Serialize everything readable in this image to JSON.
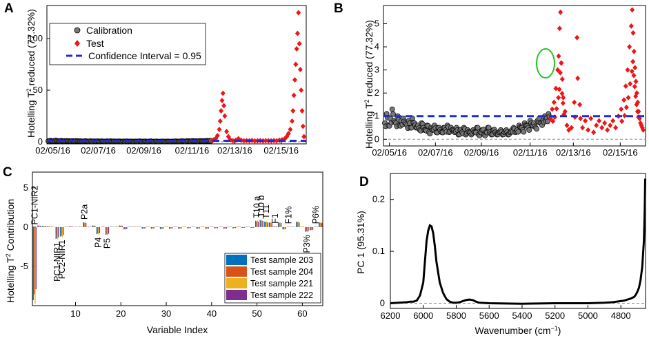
{
  "chart_data": [
    {
      "panel": "A",
      "type": "scatter",
      "xlabel": "",
      "ylabel": "Hotelling T² reduced (77.32%)",
      "ylabel_parts": [
        "Hotelling T",
        "2",
        " reduced (77.32%)"
      ],
      "ylim": [
        0,
        130
      ],
      "yticks": [
        "0",
        "50",
        "100"
      ],
      "xticks": [
        "02/05/16",
        "02/07/16",
        "02/09/16",
        "02/11/16",
        "02/13/16",
        "02/15/16"
      ],
      "legend": [
        "Calibration",
        "Test",
        "Confidence Interval = 0.95"
      ],
      "confidence_limit": 1,
      "series": [
        {
          "name": "Calibration",
          "x": [
            0,
            2,
            4,
            6,
            8,
            10,
            12,
            14,
            16,
            18,
            20,
            22,
            24,
            26,
            28,
            30,
            32,
            34,
            36,
            38,
            40,
            42,
            44,
            46,
            48,
            50,
            52,
            54,
            56,
            58,
            60,
            62,
            64,
            66,
            68,
            70,
            72,
            74,
            76,
            78,
            80,
            82,
            84,
            86,
            88,
            90,
            92,
            94,
            96,
            98,
            100,
            102,
            104,
            106,
            108,
            110,
            112,
            114,
            116,
            118,
            120,
            122,
            124,
            126,
            128,
            130,
            132,
            134,
            136,
            138,
            140,
            142,
            144,
            146,
            148,
            150,
            152,
            154,
            156,
            158,
            160,
            162,
            164,
            166,
            168,
            170,
            172,
            174,
            176,
            178
          ],
          "y": [
            0.7,
            1.1,
            0.6,
            0.9,
            1.3,
            0.8,
            0.7,
            1.0,
            0.6,
            0.8,
            0.9,
            0.7,
            0.6,
            0.8,
            0.5,
            0.9,
            0.7,
            0.5,
            0.6,
            0.4,
            0.7,
            0.5,
            0.4,
            0.6,
            0.3,
            0.5,
            0.4,
            0.6,
            0.3,
            0.5,
            0.4,
            0.3,
            0.5,
            0.4,
            0.6,
            0.3,
            0.5,
            0.4,
            0.3,
            0.5,
            0.2,
            0.4,
            0.3,
            0.5,
            0.2,
            0.4,
            0.3,
            0.2,
            0.4,
            0.3,
            0.5,
            0.2,
            0.3,
            0.4,
            0.2,
            0.3,
            0.5,
            0.3,
            0.2,
            0.4,
            0.3,
            0.2,
            0.3,
            0.4,
            0.2,
            0.3,
            0.4,
            0.2,
            0.3,
            0.4,
            0.5,
            0.3,
            0.4,
            0.6,
            0.5,
            0.4,
            0.7,
            0.6,
            0.5,
            0.8,
            0.6,
            0.7,
            0.5,
            0.8,
            0.9,
            0.7,
            0.8,
            1.0,
            0.9,
            1.1
          ]
        },
        {
          "name": "Test",
          "x": [
            180,
            182,
            184,
            186,
            188,
            189,
            190,
            191,
            192,
            193,
            194,
            196,
            198,
            200,
            203,
            206,
            209,
            212,
            215,
            218,
            221,
            224,
            227,
            230,
            233,
            236,
            239,
            242,
            245,
            248,
            251,
            254,
            257,
            260,
            262,
            264,
            266,
            268,
            269,
            270,
            271,
            272,
            273,
            274,
            275,
            276,
            277,
            278,
            279,
            280,
            281
          ],
          "y": [
            1,
            2,
            3,
            6,
            12,
            20,
            30,
            40,
            47,
            35,
            25,
            10,
            5,
            2,
            1,
            1.5,
            3,
            1.5,
            1,
            1.2,
            1,
            1.3,
            0.8,
            1,
            1.2,
            0.9,
            1.1,
            1,
            0.9,
            1.2,
            1,
            1.5,
            2,
            3,
            5,
            8,
            12,
            20,
            30,
            45,
            60,
            75,
            90,
            105,
            125,
            95,
            70,
            50,
            30,
            15,
            5
          ]
        }
      ]
    },
    {
      "panel": "B",
      "type": "scatter",
      "xlabel": "",
      "ylabel": "Hotelling T² reduced (77.32%)",
      "ylabel_parts": [
        "Hotelling T",
        "2",
        " reduced (77.32%)"
      ],
      "ylim": [
        -0.2,
        5.7
      ],
      "yticks": [
        "0",
        "1",
        "2",
        "3",
        "4",
        "5"
      ],
      "xticks": [
        "02/05/16",
        "02/07/16",
        "02/09/16",
        "02/11/16",
        "02/13/16",
        "02/15/16"
      ],
      "confidence_limit": 1,
      "series": [
        {
          "name": "Calibration",
          "x": [
            0,
            2,
            4,
            6,
            8,
            10,
            12,
            14,
            16,
            18,
            20,
            22,
            24,
            26,
            28,
            30,
            32,
            34,
            36,
            38,
            40,
            42,
            44,
            46,
            48,
            50,
            52,
            54,
            56,
            58,
            60,
            62,
            64,
            66,
            68,
            70,
            72,
            74,
            76,
            78,
            80,
            82,
            84,
            86,
            88,
            90,
            92,
            94,
            96,
            98,
            100,
            102,
            104,
            106,
            108,
            110,
            112,
            114,
            116,
            118,
            120,
            122,
            124,
            126,
            128,
            130,
            132,
            134,
            136,
            138,
            140,
            142,
            144,
            146,
            148,
            150,
            152,
            154,
            156,
            158,
            160,
            162,
            164,
            166,
            168,
            170,
            172,
            174,
            176,
            178
          ],
          "y": [
            0.7,
            1.1,
            0.6,
            0.9,
            1.3,
            0.8,
            0.7,
            1.0,
            0.6,
            0.8,
            0.9,
            0.7,
            0.6,
            0.8,
            0.5,
            0.9,
            0.7,
            0.5,
            0.6,
            0.4,
            0.7,
            0.5,
            0.4,
            0.6,
            0.3,
            0.5,
            0.4,
            0.6,
            0.3,
            0.5,
            0.4,
            0.3,
            0.5,
            0.4,
            0.6,
            0.3,
            0.5,
            0.4,
            0.3,
            0.5,
            0.2,
            0.4,
            0.3,
            0.5,
            0.2,
            0.4,
            0.3,
            0.2,
            0.4,
            0.3,
            0.5,
            0.2,
            0.3,
            0.4,
            0.2,
            0.3,
            0.5,
            0.3,
            0.2,
            0.4,
            0.3,
            0.2,
            0.3,
            0.4,
            0.2,
            0.3,
            0.4,
            0.2,
            0.3,
            0.4,
            0.5,
            0.3,
            0.4,
            0.6,
            0.5,
            0.4,
            0.7,
            0.6,
            0.5,
            0.8,
            0.6,
            0.7,
            0.5,
            0.8,
            0.9,
            0.7,
            0.8,
            1.0,
            0.9,
            1.1
          ]
        },
        {
          "name": "Test",
          "x": [
            180,
            182,
            184,
            186,
            188,
            189,
            190,
            191,
            192,
            193,
            194,
            196,
            198,
            200,
            203,
            206,
            209,
            212,
            215,
            218,
            221,
            224,
            227,
            230,
            233,
            236,
            239,
            242,
            245,
            248,
            251,
            254,
            257,
            260,
            262,
            264,
            266,
            268,
            269,
            270,
            271,
            272,
            273,
            274,
            275,
            276,
            277,
            278,
            279,
            280,
            281
          ],
          "y": [
            0.9,
            1.3,
            1.6,
            2.2,
            3.0,
            3.6,
            4.8,
            5.5,
            3.3,
            2.6,
            1.8,
            1.2,
            0.6,
            0.4,
            0.5,
            1.6,
            4.4,
            1.5,
            0.5,
            0.8,
            0.4,
            0.9,
            0.3,
            0.6,
            0.8,
            0.5,
            0.7,
            0.4,
            0.6,
            0.8,
            0.5,
            1.0,
            1.3,
            1.7,
            2.3,
            3.0,
            4.0,
            4.9,
            5.6,
            4.6,
            3.8,
            3.1,
            2.5,
            2.0,
            1.6,
            1.2,
            0.9,
            0.7,
            0.6,
            0.5,
            0.4
          ]
        }
      ],
      "annotation": "green ellipse around spike near 02/11/16"
    },
    {
      "panel": "C",
      "type": "bar",
      "xlabel": "Variable Index",
      "ylabel": "Hotelling T² Contribution",
      "ylabel_parts": [
        "Hotelling T",
        "2",
        " Contribution"
      ],
      "ylim": [
        -10,
        7
      ],
      "xlim": [
        0.5,
        64.5
      ],
      "yticks": [
        "-5",
        "0",
        "5"
      ],
      "xticks": [
        "10",
        "20",
        "30",
        "40",
        "50",
        "60"
      ],
      "series": [
        {
          "name": "Test sample 203",
          "color": "#0072BD"
        },
        {
          "name": "Test sample 204",
          "color": "#D95319"
        },
        {
          "name": "Test sample 221",
          "color": "#EDB120"
        },
        {
          "name": "Test sample 222",
          "color": "#7E2F8E"
        }
      ],
      "values": [
        -9.3,
        0.2,
        0.15,
        0.1,
        0.05,
        -1.5,
        -1.2,
        0.05,
        0.1,
        0.05,
        0.05,
        0.6,
        0.05,
        0.2,
        -0.9,
        0.05,
        -1.0,
        0.05,
        0.05,
        0.2,
        -0.3,
        0.05,
        0.05,
        0.05,
        -0.2,
        0.05,
        -0.2,
        0.05,
        -0.25,
        0.05,
        -0.2,
        0.05,
        -0.2,
        0.05,
        -0.15,
        0.05,
        -0.2,
        0.05,
        -0.2,
        0.05,
        -0.15,
        0.05,
        -0.2,
        0.05,
        -0.15,
        0.05,
        -0.1,
        0.05,
        -0.1,
        0.8,
        0.9,
        0.7,
        0.6,
        0.1,
        0.6,
        -0.3,
        0.05,
        0.05,
        0.7,
        0.05,
        -0.6,
        -0.4,
        0.05,
        0.6
      ],
      "variable_labels": [
        {
          "text": "PC1-NIR2",
          "index": 1
        },
        {
          "text": "PC1-NIR1",
          "index": 6
        },
        {
          "text": "PC2-NIR1",
          "index": 7
        },
        {
          "text": "P2a",
          "index": 12
        },
        {
          "text": "P4",
          "index": 15
        },
        {
          "text": "P5",
          "index": 17
        },
        {
          "text": "T10 a",
          "index": 50
        },
        {
          "text": "T10 b",
          "index": 51
        },
        {
          "text": "T11",
          "index": 52
        },
        {
          "text": "F1",
          "index": 54
        },
        {
          "text": "F1%",
          "index": 57
        },
        {
          "text": "P3%",
          "index": 61
        },
        {
          "text": "P6%",
          "index": 63
        }
      ]
    },
    {
      "panel": "D",
      "type": "line",
      "xlabel": "Wavenumber (cm⁻¹)",
      "xlabel_parts": [
        "Wavenumber (cm",
        "−1",
        ")"
      ],
      "ylabel": "PC 1 (95.31%)",
      "xlim": [
        6200,
        4650
      ],
      "ylim": [
        -0.01,
        0.25
      ],
      "yticks": [
        "0",
        "0.1",
        "0.2"
      ],
      "xticks": [
        "6200",
        "6000",
        "5800",
        "5600",
        "5400",
        "5200",
        "5000",
        "4800"
      ],
      "x": [
        6200,
        6150,
        6100,
        6080,
        6060,
        6040,
        6020,
        6000,
        5990,
        5980,
        5970,
        5960,
        5950,
        5940,
        5930,
        5920,
        5900,
        5880,
        5860,
        5840,
        5820,
        5800,
        5780,
        5760,
        5740,
        5720,
        5700,
        5680,
        5660,
        5600,
        5400,
        5200,
        5000,
        4900,
        4850,
        4800,
        4780,
        4760,
        4740,
        4720,
        4710,
        4700,
        4690,
        4680,
        4670,
        4660,
        4655,
        4652
      ],
      "y": [
        0,
        0.001,
        0.002,
        0.003,
        0.003,
        0.005,
        0.015,
        0.04,
        0.08,
        0.12,
        0.14,
        0.15,
        0.148,
        0.135,
        0.11,
        0.08,
        0.04,
        0.02,
        0.008,
        0.003,
        0.001,
        0.001,
        0.002,
        0.004,
        0.006,
        0.007,
        0.006,
        0.003,
        0.001,
        0.0,
        -0.001,
        0.0,
        0.0,
        0.001,
        0.002,
        0.004,
        0.005,
        0.007,
        0.009,
        0.012,
        0.016,
        0.022,
        0.03,
        0.045,
        0.07,
        0.12,
        0.18,
        0.24
      ]
    }
  ]
}
